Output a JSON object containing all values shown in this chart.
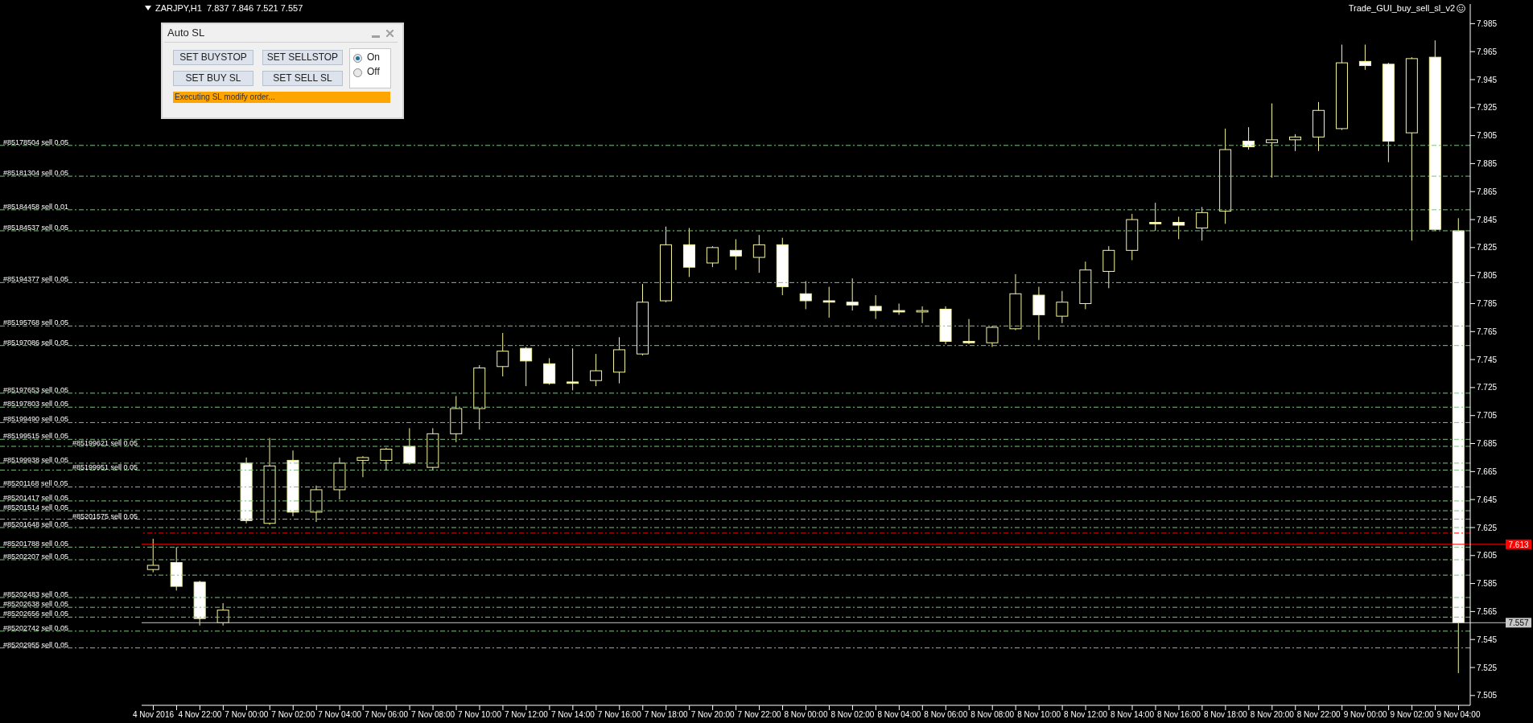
{
  "chart_data": {
    "type": "candlestick",
    "title": "ZARJPY,H1  7.837 7.846 7.521 7.557",
    "annotations": [
      "Trade_GUI_buy_sell_sl_v2",
      "Auto SL",
      "SET BUYSTOP",
      "SET SELLSTOP",
      "SET BUY SL",
      "SET SELL SL",
      "On",
      "Off",
      "Executing SL modify order..."
    ],
    "categories": [
      "4 Nov 2016",
      null,
      "4 Nov 22:00",
      null,
      "7 Nov 00:00",
      null,
      "7 Nov 02:00",
      null,
      "7 Nov 04:00",
      null,
      "7 Nov 06:00",
      null,
      "7 Nov 08:00",
      null,
      "7 Nov 10:00",
      null,
      "7 Nov 12:00",
      null,
      "7 Nov 14:00",
      null,
      "7 Nov 16:00",
      null,
      "7 Nov 18:00",
      null,
      "7 Nov 20:00",
      null,
      "7 Nov 22:00",
      null,
      "8 Nov 00:00",
      null,
      "8 Nov 02:00",
      null,
      "8 Nov 04:00",
      null,
      "8 Nov 06:00",
      null,
      "8 Nov 08:00",
      null,
      "8 Nov 10:00",
      null,
      "8 Nov 12:00",
      null,
      "8 Nov 14:00",
      null,
      "8 Nov 16:00",
      null,
      "8 Nov 18:00",
      null,
      "8 Nov 20:00",
      null,
      "8 Nov 22:00",
      null,
      "9 Nov 00:00",
      null,
      "9 Nov 02:00",
      null,
      "9 Nov 04:00"
    ],
    "ohlc": [
      [
        7.595,
        7.617,
        7.593,
        7.598
      ],
      [
        7.6,
        7.611,
        7.58,
        7.583
      ],
      [
        7.586,
        7.587,
        7.555,
        7.56
      ],
      [
        7.557,
        7.571,
        7.555,
        7.566
      ],
      [
        7.671,
        7.675,
        7.628,
        7.63
      ],
      [
        7.628,
        7.689,
        7.627,
        7.669
      ],
      [
        7.673,
        7.68,
        7.633,
        7.636
      ],
      [
        7.636,
        7.655,
        7.629,
        7.652
      ],
      [
        7.652,
        7.675,
        7.645,
        7.671
      ],
      [
        7.673,
        7.676,
        7.661,
        7.675
      ],
      [
        7.673,
        7.682,
        7.666,
        7.681
      ],
      [
        7.683,
        7.696,
        7.67,
        7.671
      ],
      [
        7.668,
        7.696,
        7.666,
        7.692
      ],
      [
        7.692,
        7.719,
        7.686,
        7.71
      ],
      [
        7.71,
        7.741,
        7.695,
        7.739
      ],
      [
        7.74,
        7.764,
        7.733,
        7.751
      ],
      [
        7.753,
        7.754,
        7.726,
        7.744
      ],
      [
        7.742,
        7.746,
        7.727,
        7.728
      ],
      [
        7.729,
        7.753,
        7.723,
        7.728
      ],
      [
        7.73,
        7.749,
        7.726,
        7.737
      ],
      [
        7.736,
        7.761,
        7.728,
        7.752
      ],
      [
        7.749,
        7.799,
        7.748,
        7.786
      ],
      [
        7.787,
        7.84,
        7.786,
        7.827
      ],
      [
        7.827,
        7.839,
        7.804,
        7.811
      ],
      [
        7.814,
        7.826,
        7.811,
        7.825
      ],
      [
        7.823,
        7.831,
        7.809,
        7.819
      ],
      [
        7.818,
        7.834,
        7.807,
        7.827
      ],
      [
        7.827,
        7.832,
        7.791,
        7.797
      ],
      [
        7.792,
        7.801,
        7.781,
        7.787
      ],
      [
        7.787,
        7.797,
        7.775,
        7.786
      ],
      [
        7.786,
        7.803,
        7.78,
        7.784
      ],
      [
        7.783,
        7.791,
        7.774,
        7.78
      ],
      [
        7.78,
        7.785,
        7.777,
        7.779
      ],
      [
        7.779,
        7.783,
        7.771,
        7.78
      ],
      [
        7.781,
        7.783,
        7.756,
        7.758
      ],
      [
        7.758,
        7.774,
        7.756,
        7.757
      ],
      [
        7.757,
        7.769,
        7.754,
        7.768
      ],
      [
        7.767,
        7.806,
        7.766,
        7.792
      ],
      [
        7.791,
        7.797,
        7.759,
        7.777
      ],
      [
        7.776,
        7.794,
        7.771,
        7.786
      ],
      [
        7.785,
        7.815,
        7.781,
        7.809
      ],
      [
        7.808,
        7.826,
        7.796,
        7.823
      ],
      [
        7.823,
        7.849,
        7.816,
        7.845
      ],
      [
        7.843,
        7.857,
        7.837,
        7.842
      ],
      [
        7.843,
        7.847,
        7.831,
        7.841
      ],
      [
        7.839,
        7.854,
        7.83,
        7.85
      ],
      [
        7.851,
        7.91,
        7.842,
        7.895
      ],
      [
        7.901,
        7.911,
        7.895,
        7.897
      ],
      [
        7.9,
        7.928,
        7.875,
        7.902
      ],
      [
        7.902,
        7.906,
        7.894,
        7.904
      ],
      [
        7.904,
        7.929,
        7.894,
        7.923
      ],
      [
        7.91,
        7.97,
        7.909,
        7.957
      ],
      [
        7.958,
        7.97,
        7.952,
        7.955
      ],
      [
        7.956,
        7.957,
        7.886,
        7.901
      ],
      [
        7.907,
        7.961,
        7.83,
        7.96
      ],
      [
        7.961,
        7.973,
        7.837,
        7.838
      ],
      [
        7.837,
        7.846,
        7.521,
        7.557
      ]
    ],
    "color": "#f5f5a0",
    "colors": [
      "#000000",
      "#ffffff",
      "#ffffff",
      "#000000",
      "#ffffff",
      "#000000",
      "#ffffff",
      "#000000",
      "#000000",
      "#000000",
      "#000000",
      "#ffffff",
      "#000000",
      "#000000",
      "#000000",
      "#000000",
      "#ffffff",
      "#ffffff",
      "#ffffff",
      "#000000",
      "#000000",
      "#000000",
      "#000000",
      "#ffffff",
      "#000000",
      "#ffffff",
      "#000000",
      "#ffffff",
      "#ffffff",
      "#ffffff",
      "#ffffff",
      "#ffffff",
      "#ffffff",
      "#000000",
      "#ffffff",
      "#ffffff",
      "#000000",
      "#000000",
      "#ffffff",
      "#000000",
      "#000000",
      "#000000",
      "#000000",
      "#ffffff",
      "#ffffff",
      "#000000",
      "#000000",
      "#ffffff",
      "#000000",
      "#000000",
      "#000000",
      "#000000",
      "#ffffff",
      "#ffffff",
      "#000000",
      "#ffffff",
      "#ffffff"
    ],
    "ylim": [
      7.498,
      7.999
    ],
    "yticks": [
      7.505,
      7.525,
      7.545,
      7.565,
      7.585,
      7.605,
      7.625,
      7.645,
      7.665,
      7.685,
      7.705,
      7.725,
      7.745,
      7.765,
      7.785,
      7.805,
      7.825,
      7.845,
      7.865,
      7.885,
      7.905,
      7.925,
      7.945,
      7.965,
      7.985
    ],
    "ref_lines": [
      {
        "axis": "y",
        "value": 7.898,
        "label": "#85178504 sell 0.05",
        "color": "#7fc07f",
        "line_style": "dashed"
      },
      {
        "axis": "y",
        "value": 7.876,
        "label": "#85181304 sell 0.05",
        "color": "#7fc07f",
        "line_style": "dashed"
      },
      {
        "axis": "y",
        "value": 7.852,
        "label": "#85184458 sell 0.01",
        "color": "#7fc07f",
        "line_style": "dashed"
      },
      {
        "axis": "y",
        "value": 7.837,
        "label": "#85184537 sell 0.05",
        "color": "#7fc07f",
        "line_style": "dashed"
      },
      {
        "axis": "y",
        "value": 7.8,
        "label": "#85194377 sell 0.05",
        "color": "#7fc07f",
        "line_style": "dashed"
      },
      {
        "axis": "y",
        "value": 7.769,
        "label": "#85195768 sell 0.05",
        "color": "#7fc07f",
        "line_style": "dashed"
      },
      {
        "axis": "y",
        "value": 7.755,
        "label": "#85197086 sell 0.05",
        "color": "#7fc07f",
        "line_style": "dashed"
      },
      {
        "axis": "y",
        "value": 7.721,
        "label": "#85197653 sell 0.05",
        "color": "#7fc07f",
        "line_style": "dashed"
      },
      {
        "axis": "y",
        "value": 7.711,
        "label": "#85197803 sell 0.05",
        "color": "#7fc07f",
        "line_style": "dashed"
      },
      {
        "axis": "y",
        "value": 7.7,
        "label": "#85199490 sell 0.05",
        "color": "#7fc07f",
        "line_style": "dashed"
      },
      {
        "axis": "y",
        "value": 7.688,
        "label": "#85199515 sell 0.05",
        "color": "#7fc07f",
        "line_style": "dashed"
      },
      {
        "axis": "y",
        "value": 7.683,
        "label": "#85199621 sell 0.05",
        "color": "#7fc07f",
        "line_style": "dashed"
      },
      {
        "axis": "y",
        "value": 7.671,
        "label": "#85199938 sell 0.05",
        "color": "#7fc07f",
        "line_style": "dashed"
      },
      {
        "axis": "y",
        "value": 7.666,
        "label": "#85199951 sell 0.05",
        "color": "#7fc07f",
        "line_style": "dashed"
      },
      {
        "axis": "y",
        "value": 7.654,
        "label": "#85201168 sell 0.05",
        "color": "#7fc07f",
        "line_style": "dashed"
      },
      {
        "axis": "y",
        "value": 7.644,
        "label": "#85201417 sell 0.05",
        "color": "#7fc07f",
        "line_style": "dashed"
      },
      {
        "axis": "y",
        "value": 7.637,
        "label": "#85201514 sell 0.05",
        "color": "#7fc07f",
        "line_style": "dashed"
      },
      {
        "axis": "y",
        "value": 7.631,
        "label": "#85201575 sell 0.05",
        "color": "#7fc07f",
        "line_style": "dashed"
      },
      {
        "axis": "y",
        "value": 7.625,
        "label": "#85201648 sell 0.05",
        "color": "#7fc07f",
        "line_style": "dashed"
      },
      {
        "axis": "y",
        "value": 7.621,
        "label": null,
        "color": "#ff0000",
        "line_style": "dashed"
      },
      {
        "axis": "y",
        "value": 7.613,
        "label": "7.613",
        "color": "#ff0000",
        "line_style": "solid"
      },
      {
        "axis": "y",
        "value": 7.611,
        "label": "#85201788 sell 0.05",
        "color": "#7fc07f",
        "line_style": "dashed"
      },
      {
        "axis": "y",
        "value": 7.602,
        "label": "#85202207 sell 0.05",
        "color": "#7fc07f",
        "line_style": "dashed"
      },
      {
        "axis": "y",
        "value": 7.591,
        "label": null,
        "color": "#7fc07f",
        "line_style": "dashed"
      },
      {
        "axis": "y",
        "value": 7.575,
        "label": "#85202483 sell 0.05",
        "color": "#7fc07f",
        "line_style": "dashed"
      },
      {
        "axis": "y",
        "value": 7.568,
        "label": "#85202638 sell 0.05",
        "color": "#7fc07f",
        "line_style": "dashed"
      },
      {
        "axis": "y",
        "value": 7.561,
        "label": "#85202656 sell 0.05",
        "color": "#7fc07f",
        "line_style": "dashed"
      },
      {
        "axis": "y",
        "value": 7.557,
        "label": "7.557",
        "color": "#c8c8c8",
        "line_style": "solid"
      },
      {
        "axis": "y",
        "value": 7.551,
        "label": "#85202742 sell 0.05",
        "color": "#7fc07f",
        "line_style": "dashed"
      },
      {
        "axis": "y",
        "value": 7.539,
        "label": "#85202955 sell 0.05",
        "color": "#7fc07f",
        "line_style": "dashed"
      }
    ]
  }
}
